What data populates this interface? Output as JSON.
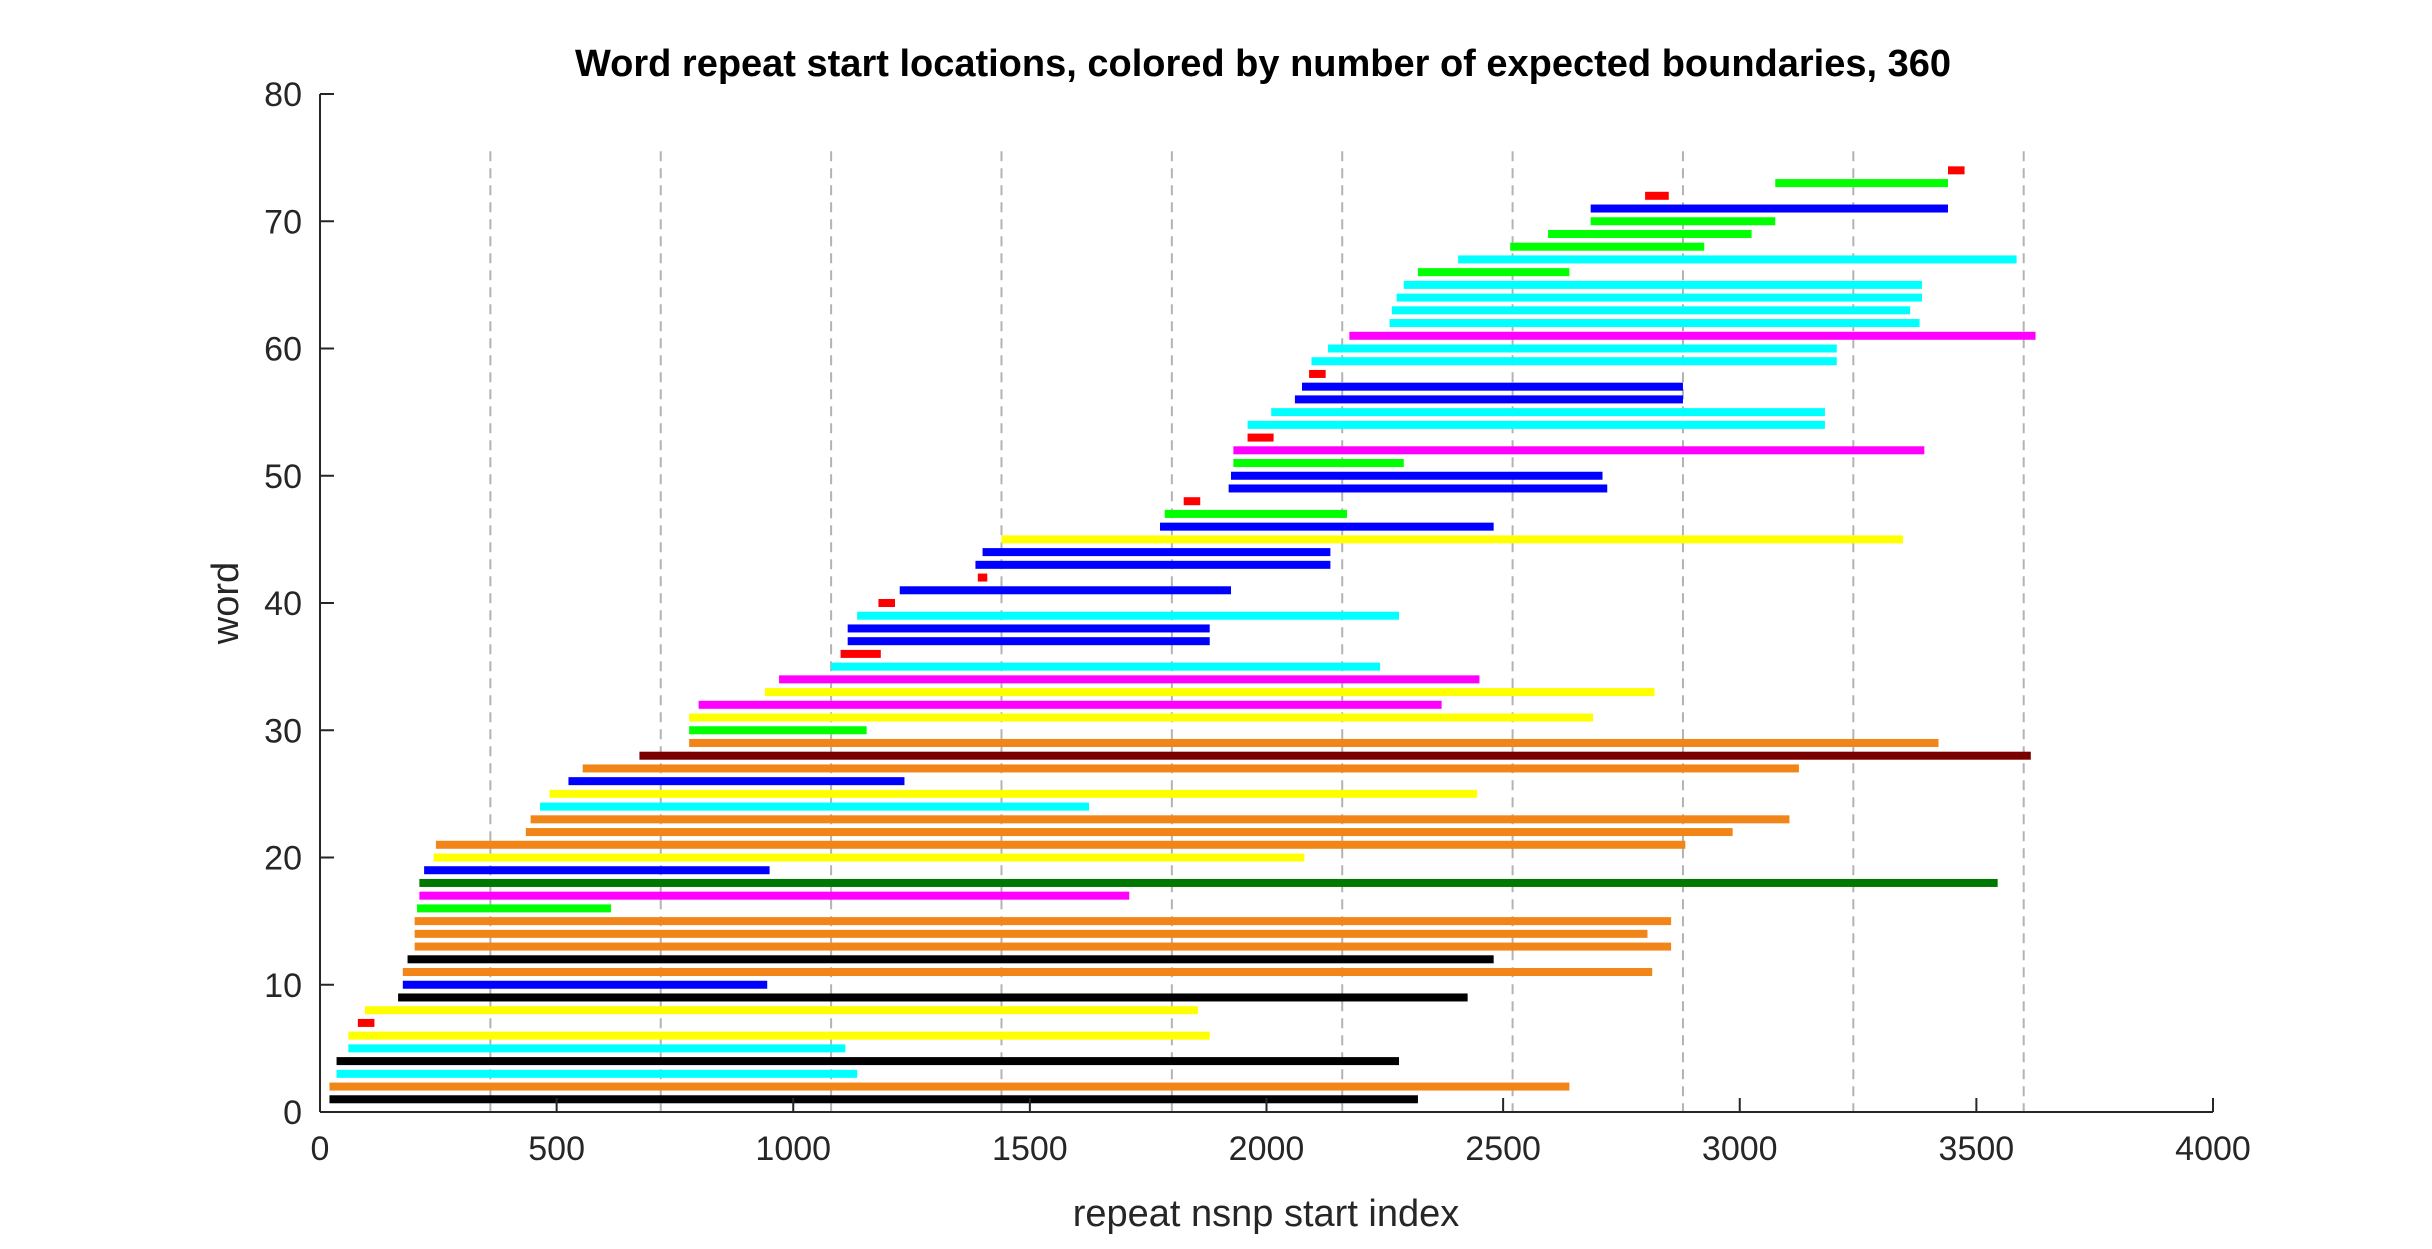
{
  "chart_data": {
    "type": "bar",
    "title": "Word repeat start locations, colored by number of expected boundaries, 360",
    "xlabel": "repeat nsnp start index",
    "ylabel": "word",
    "xlim": [
      0,
      4000
    ],
    "ylim": [
      0,
      80
    ],
    "xticks": [
      "0",
      "500",
      "1000",
      "1500",
      "2000",
      "2500",
      "3000",
      "3500",
      "4000"
    ],
    "yticks": [
      "0",
      "10",
      "20",
      "30",
      "40",
      "50",
      "60",
      "70",
      "80"
    ],
    "vlines": [
      360,
      720,
      1080,
      1440,
      1800,
      2160,
      2520,
      2880,
      3240,
      3600
    ],
    "colors": {
      "black": "#000000",
      "orange": "#f28518",
      "cyan": "#00ffff",
      "yellow": "#ffff00",
      "red": "#ff0000",
      "blue": "#0000ff",
      "green": "#00ff00",
      "magenta": "#ff00ff",
      "darkgreen": "#007700",
      "darkred": "#7a0000"
    },
    "segments": [
      {
        "word": 1,
        "start": 20,
        "end": 2320,
        "color": "black"
      },
      {
        "word": 2,
        "start": 20,
        "end": 2640,
        "color": "orange"
      },
      {
        "word": 3,
        "start": 35,
        "end": 1135,
        "color": "cyan"
      },
      {
        "word": 4,
        "start": 35,
        "end": 2280,
        "color": "black"
      },
      {
        "word": 5,
        "start": 60,
        "end": 1110,
        "color": "cyan"
      },
      {
        "word": 6,
        "start": 60,
        "end": 1880,
        "color": "yellow"
      },
      {
        "word": 7,
        "start": 80,
        "end": 115,
        "color": "red"
      },
      {
        "word": 8,
        "start": 95,
        "end": 1855,
        "color": "yellow"
      },
      {
        "word": 9,
        "start": 165,
        "end": 2425,
        "color": "black"
      },
      {
        "word": 10,
        "start": 175,
        "end": 945,
        "color": "blue"
      },
      {
        "word": 11,
        "start": 175,
        "end": 2815,
        "color": "orange"
      },
      {
        "word": 12,
        "start": 185,
        "end": 2480,
        "color": "black"
      },
      {
        "word": 13,
        "start": 200,
        "end": 2855,
        "color": "orange"
      },
      {
        "word": 14,
        "start": 200,
        "end": 2805,
        "color": "orange"
      },
      {
        "word": 15,
        "start": 200,
        "end": 2855,
        "color": "orange"
      },
      {
        "word": 16,
        "start": 205,
        "end": 615,
        "color": "green"
      },
      {
        "word": 17,
        "start": 210,
        "end": 1710,
        "color": "magenta"
      },
      {
        "word": 18,
        "start": 210,
        "end": 3545,
        "color": "darkgreen"
      },
      {
        "word": 19,
        "start": 220,
        "end": 950,
        "color": "blue"
      },
      {
        "word": 20,
        "start": 240,
        "end": 2080,
        "color": "yellow"
      },
      {
        "word": 21,
        "start": 245,
        "end": 2885,
        "color": "orange"
      },
      {
        "word": 22,
        "start": 435,
        "end": 2985,
        "color": "orange"
      },
      {
        "word": 23,
        "start": 445,
        "end": 3105,
        "color": "orange"
      },
      {
        "word": 24,
        "start": 465,
        "end": 1625,
        "color": "cyan"
      },
      {
        "word": 25,
        "start": 485,
        "end": 2445,
        "color": "yellow"
      },
      {
        "word": 26,
        "start": 525,
        "end": 1235,
        "color": "blue"
      },
      {
        "word": 27,
        "start": 555,
        "end": 3125,
        "color": "orange"
      },
      {
        "word": 28,
        "start": 675,
        "end": 3615,
        "color": "darkred"
      },
      {
        "word": 29,
        "start": 780,
        "end": 3420,
        "color": "orange"
      },
      {
        "word": 30,
        "start": 780,
        "end": 1155,
        "color": "green"
      },
      {
        "word": 31,
        "start": 780,
        "end": 2690,
        "color": "yellow"
      },
      {
        "word": 32,
        "start": 800,
        "end": 2370,
        "color": "magenta"
      },
      {
        "word": 33,
        "start": 940,
        "end": 2820,
        "color": "yellow"
      },
      {
        "word": 34,
        "start": 970,
        "end": 2450,
        "color": "magenta"
      },
      {
        "word": 35,
        "start": 1080,
        "end": 2240,
        "color": "cyan"
      },
      {
        "word": 36,
        "start": 1100,
        "end": 1185,
        "color": "red"
      },
      {
        "word": 37,
        "start": 1115,
        "end": 1880,
        "color": "blue"
      },
      {
        "word": 38,
        "start": 1115,
        "end": 1880,
        "color": "blue"
      },
      {
        "word": 39,
        "start": 1135,
        "end": 2280,
        "color": "cyan"
      },
      {
        "word": 40,
        "start": 1180,
        "end": 1215,
        "color": "red"
      },
      {
        "word": 41,
        "start": 1225,
        "end": 1925,
        "color": "blue"
      },
      {
        "word": 42,
        "start": 1390,
        "end": 1410,
        "color": "red"
      },
      {
        "word": 43,
        "start": 1385,
        "end": 2135,
        "color": "blue"
      },
      {
        "word": 44,
        "start": 1400,
        "end": 2135,
        "color": "blue"
      },
      {
        "word": 45,
        "start": 1440,
        "end": 3345,
        "color": "yellow"
      },
      {
        "word": 46,
        "start": 1775,
        "end": 2480,
        "color": "blue"
      },
      {
        "word": 47,
        "start": 1785,
        "end": 2170,
        "color": "green"
      },
      {
        "word": 48,
        "start": 1825,
        "end": 1860,
        "color": "red"
      },
      {
        "word": 49,
        "start": 1920,
        "end": 2720,
        "color": "blue"
      },
      {
        "word": 50,
        "start": 1925,
        "end": 2710,
        "color": "blue"
      },
      {
        "word": 51,
        "start": 1930,
        "end": 2290,
        "color": "green"
      },
      {
        "word": 52,
        "start": 1930,
        "end": 3390,
        "color": "magenta"
      },
      {
        "word": 53,
        "start": 1960,
        "end": 2015,
        "color": "red"
      },
      {
        "word": 54,
        "start": 1960,
        "end": 3180,
        "color": "cyan"
      },
      {
        "word": 55,
        "start": 2010,
        "end": 3180,
        "color": "cyan"
      },
      {
        "word": 56,
        "start": 2060,
        "end": 2880,
        "color": "blue"
      },
      {
        "word": 57,
        "start": 2075,
        "end": 2880,
        "color": "blue"
      },
      {
        "word": 58,
        "start": 2090,
        "end": 2125,
        "color": "red"
      },
      {
        "word": 59,
        "start": 2095,
        "end": 3205,
        "color": "cyan"
      },
      {
        "word": 60,
        "start": 2130,
        "end": 3205,
        "color": "cyan"
      },
      {
        "word": 61,
        "start": 2175,
        "end": 3625,
        "color": "magenta"
      },
      {
        "word": 62,
        "start": 2260,
        "end": 3380,
        "color": "cyan"
      },
      {
        "word": 63,
        "start": 2265,
        "end": 3360,
        "color": "cyan"
      },
      {
        "word": 64,
        "start": 2275,
        "end": 3385,
        "color": "cyan"
      },
      {
        "word": 65,
        "start": 2290,
        "end": 3385,
        "color": "cyan"
      },
      {
        "word": 66,
        "start": 2320,
        "end": 2640,
        "color": "green"
      },
      {
        "word": 67,
        "start": 2405,
        "end": 3585,
        "color": "cyan"
      },
      {
        "word": 68,
        "start": 2515,
        "end": 2925,
        "color": "green"
      },
      {
        "word": 69,
        "start": 2595,
        "end": 3025,
        "color": "green"
      },
      {
        "word": 70,
        "start": 2685,
        "end": 3075,
        "color": "green"
      },
      {
        "word": 71,
        "start": 2685,
        "end": 3440,
        "color": "blue"
      },
      {
        "word": 72,
        "start": 2800,
        "end": 2850,
        "color": "red"
      },
      {
        "word": 73,
        "start": 3075,
        "end": 3440,
        "color": "green"
      },
      {
        "word": 74,
        "start": 3440,
        "end": 3475,
        "color": "red"
      }
    ]
  }
}
